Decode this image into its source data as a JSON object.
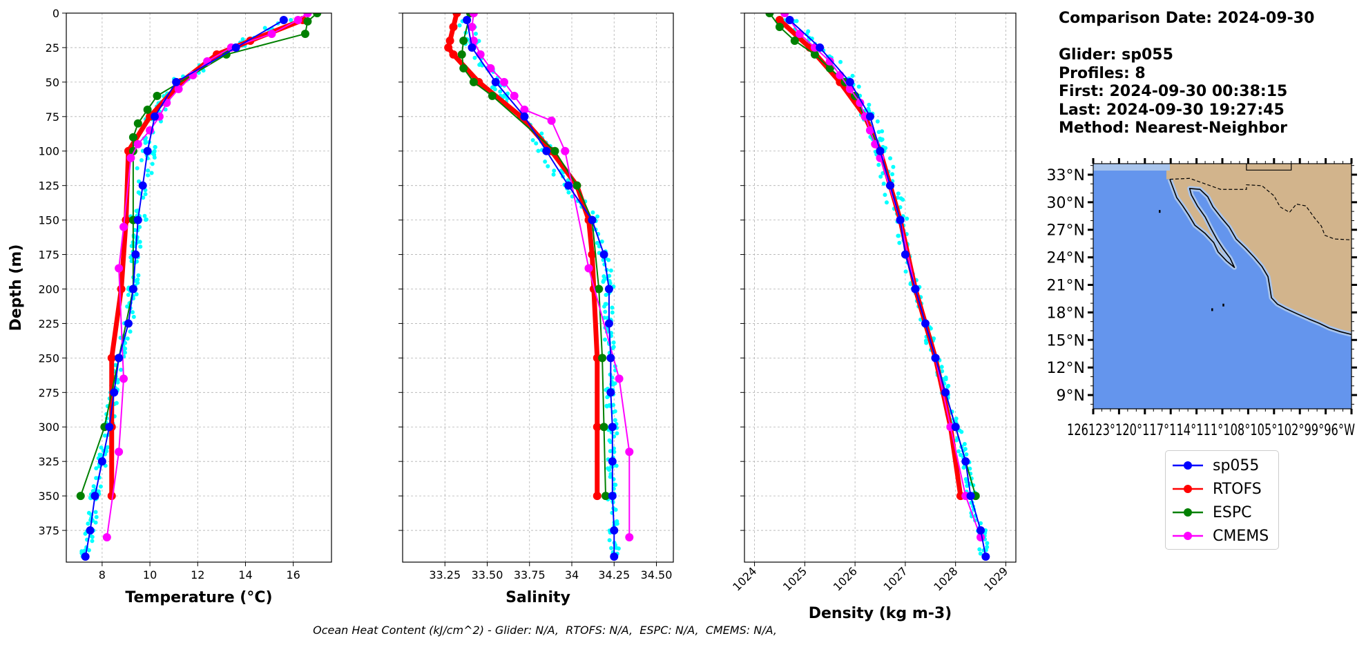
{
  "info": {
    "comparison_date": "Comparison Date: 2024-09-30",
    "glider": "Glider: sp055",
    "profiles": "Profiles: 8",
    "first": "First: 2024-09-30 00:38:15",
    "last": "Last: 2024-09-30 19:27:45",
    "method": "Method: Nearest-Neighbor"
  },
  "footer": "Ocean Heat Content (kJ/cm^2) - Glider: N/A,  RTOFS: N/A,  ESPC: N/A,  CMEMS: N/A,",
  "colors": {
    "sp055": "#0000ff",
    "RTOFS": "#ff0000",
    "ESPC": "#008000",
    "CMEMS": "#ff00ff",
    "glider_points": "#00ffff",
    "ocean": "#6495ed",
    "land": "#d2b48c",
    "shelf": "#a8c4ec"
  },
  "legend": [
    {
      "label": "sp055",
      "color": "#0000ff"
    },
    {
      "label": "RTOFS",
      "color": "#ff0000"
    },
    {
      "label": "ESPC",
      "color": "#008000"
    },
    {
      "label": "CMEMS",
      "color": "#ff00ff"
    }
  ],
  "chart_data": [
    {
      "type": "line",
      "xlabel": "Temperature (°C)",
      "ylabel": "Depth (m)",
      "xlim": [
        6.5,
        17.6
      ],
      "ylim": [
        0,
        398
      ],
      "y_inverted": true,
      "xticks": [
        8,
        10,
        12,
        14,
        16
      ],
      "yticks": [
        0,
        25,
        50,
        75,
        100,
        125,
        150,
        175,
        200,
        225,
        250,
        275,
        300,
        325,
        350,
        375
      ],
      "grid": true,
      "series": [
        {
          "name": "sp055",
          "depth": [
            5,
            25,
            50,
            75,
            100,
            125,
            150,
            175,
            200,
            225,
            250,
            275,
            300,
            325,
            350,
            375,
            394
          ],
          "values": [
            15.6,
            13.6,
            11.1,
            10.2,
            9.9,
            9.7,
            9.5,
            9.4,
            9.3,
            9.1,
            8.7,
            8.5,
            8.3,
            8.0,
            7.7,
            7.5,
            7.3
          ]
        },
        {
          "name": "RTOFS",
          "depth": [
            5,
            20,
            30,
            50,
            75,
            100,
            150,
            200,
            250,
            300,
            350
          ],
          "values": [
            16.4,
            14.2,
            12.8,
            11.3,
            10.0,
            9.1,
            9.0,
            8.8,
            8.4,
            8.4,
            8.4
          ]
        },
        {
          "name": "ESPC",
          "depth": [
            0,
            6,
            15,
            30,
            60,
            70,
            80,
            90,
            100,
            150,
            200,
            250,
            300,
            350
          ],
          "values": [
            17.0,
            16.6,
            16.5,
            13.2,
            10.3,
            9.9,
            9.5,
            9.3,
            9.3,
            9.3,
            9.3,
            8.7,
            8.1,
            7.1
          ]
        },
        {
          "name": "CMEMS",
          "depth": [
            0,
            5,
            15,
            25,
            35,
            45,
            55,
            65,
            75,
            85,
            95,
            105,
            155,
            185,
            265,
            318,
            380
          ],
          "values": [
            16.6,
            16.2,
            15.1,
            13.4,
            12.4,
            11.8,
            11.2,
            10.7,
            10.4,
            10.0,
            9.5,
            9.2,
            8.9,
            8.7,
            8.9,
            8.7,
            8.2
          ]
        }
      ]
    },
    {
      "type": "line",
      "xlabel": "Salinity",
      "xlim": [
        33.0,
        34.6
      ],
      "ylim": [
        0,
        398
      ],
      "y_inverted": true,
      "xticks": [
        33.25,
        33.5,
        33.75,
        34.0,
        34.25,
        34.5
      ],
      "grid": true,
      "series": [
        {
          "name": "sp055",
          "depth": [
            5,
            25,
            50,
            75,
            100,
            125,
            150,
            175,
            200,
            225,
            250,
            275,
            300,
            325,
            350,
            375,
            394
          ],
          "values": [
            33.38,
            33.41,
            33.55,
            33.72,
            33.85,
            33.98,
            34.12,
            34.19,
            34.22,
            34.22,
            34.23,
            34.23,
            34.24,
            34.24,
            34.24,
            34.25,
            34.25
          ]
        },
        {
          "name": "RTOFS",
          "depth": [
            0,
            10,
            20,
            25,
            30,
            50,
            75,
            100,
            125,
            150,
            175,
            200,
            250,
            300,
            350
          ],
          "values": [
            33.32,
            33.3,
            33.28,
            33.27,
            33.3,
            33.45,
            33.7,
            33.88,
            34.03,
            34.1,
            34.12,
            34.13,
            34.15,
            34.15,
            34.15
          ]
        },
        {
          "name": "ESPC",
          "depth": [
            0,
            20,
            30,
            40,
            50,
            60,
            100,
            125,
            150,
            200,
            250,
            300,
            350
          ],
          "values": [
            33.4,
            33.36,
            33.35,
            33.36,
            33.42,
            33.53,
            33.9,
            34.03,
            34.12,
            34.16,
            34.18,
            34.19,
            34.2
          ]
        },
        {
          "name": "CMEMS",
          "depth": [
            0,
            10,
            20,
            30,
            40,
            50,
            60,
            70,
            78,
            100,
            185,
            265,
            318,
            380
          ],
          "values": [
            33.42,
            33.41,
            33.42,
            33.46,
            33.52,
            33.6,
            33.66,
            33.72,
            33.88,
            33.96,
            34.1,
            34.28,
            34.34,
            34.34
          ]
        }
      ]
    },
    {
      "type": "line",
      "xlabel": "Density (kg m-3)",
      "xlim": [
        1023.8,
        1029.2
      ],
      "ylim": [
        0,
        398
      ],
      "y_inverted": true,
      "xticks": [
        1024,
        1025,
        1026,
        1027,
        1028,
        1029
      ],
      "tick_rotation": 45,
      "grid": true,
      "series": [
        {
          "name": "sp055",
          "depth": [
            5,
            25,
            50,
            75,
            100,
            125,
            150,
            175,
            200,
            225,
            250,
            275,
            300,
            325,
            350,
            375,
            394
          ],
          "values": [
            1024.7,
            1025.3,
            1025.9,
            1026.3,
            1026.5,
            1026.7,
            1026.9,
            1027.0,
            1027.2,
            1027.4,
            1027.6,
            1027.8,
            1028.0,
            1028.2,
            1028.3,
            1028.5,
            1028.6
          ]
        },
        {
          "name": "RTOFS",
          "depth": [
            5,
            25,
            50,
            75,
            100,
            150,
            200,
            250,
            300,
            350
          ],
          "values": [
            1024.5,
            1025.1,
            1025.7,
            1026.2,
            1026.5,
            1026.9,
            1027.2,
            1027.6,
            1027.9,
            1028.1
          ]
        },
        {
          "name": "ESPC",
          "depth": [
            0,
            10,
            20,
            30,
            40,
            50,
            60,
            100,
            125,
            150,
            200,
            250,
            300,
            350
          ],
          "values": [
            1024.3,
            1024.5,
            1024.8,
            1025.2,
            1025.5,
            1025.8,
            1026.0,
            1026.5,
            1026.7,
            1026.9,
            1027.2,
            1027.6,
            1028.0,
            1028.4
          ]
        },
        {
          "name": "CMEMS",
          "depth": [
            0,
            5,
            15,
            25,
            35,
            45,
            55,
            65,
            75,
            85,
            95,
            105,
            150,
            200,
            250,
            300,
            350,
            380
          ],
          "values": [
            1024.6,
            1024.7,
            1024.9,
            1025.2,
            1025.5,
            1025.7,
            1025.9,
            1026.1,
            1026.2,
            1026.3,
            1026.4,
            1026.5,
            1026.9,
            1027.2,
            1027.6,
            1027.9,
            1028.2,
            1028.5
          ]
        }
      ]
    },
    {
      "type": "map",
      "lat_ticks": [
        "9°N",
        "12°N",
        "15°N",
        "18°N",
        "21°N",
        "24°N",
        "27°N",
        "30°N",
        "33°N"
      ],
      "lat_values": [
        9,
        12,
        15,
        18,
        21,
        24,
        27,
        30,
        33
      ],
      "lon_ticks": [
        "126°W",
        "123°W",
        "120°W",
        "117°W",
        "114°W",
        "111°W",
        "108°W",
        "105°W",
        "102°W",
        "99°W",
        "96°W"
      ],
      "lon_values": [
        -126,
        -123,
        -120,
        -117,
        -114,
        -111,
        -108,
        -105,
        -102,
        -99,
        -96
      ],
      "lon_tick_render": "126123°120°117°114°111°108°105°102°99°96°W",
      "extent": {
        "lon": [
          -126,
          -96
        ],
        "lat": [
          7.5,
          34.2
        ]
      },
      "coastline": [
        [
          -117.1,
          32.5
        ],
        [
          -116.7,
          31.5
        ],
        [
          -116.3,
          30.5
        ],
        [
          -115.6,
          29.6
        ],
        [
          -114.9,
          28.6
        ],
        [
          -114.2,
          27.5
        ],
        [
          -113.0,
          26.6
        ],
        [
          -112.0,
          25.6
        ],
        [
          -111.5,
          24.6
        ],
        [
          -110.5,
          23.6
        ],
        [
          -109.6,
          22.9
        ],
        [
          -110.1,
          23.9
        ],
        [
          -110.9,
          24.9
        ],
        [
          -111.6,
          25.9
        ],
        [
          -112.3,
          27.1
        ],
        [
          -113.0,
          28.4
        ],
        [
          -113.9,
          29.6
        ],
        [
          -114.6,
          30.8
        ],
        [
          -114.8,
          31.5
        ],
        [
          -113.6,
          31.4
        ],
        [
          -112.7,
          30.6
        ],
        [
          -112.1,
          29.5
        ],
        [
          -111.1,
          28.3
        ],
        [
          -110.2,
          27.3
        ],
        [
          -109.4,
          26.0
        ],
        [
          -108.3,
          25.0
        ],
        [
          -107.3,
          24.0
        ],
        [
          -106.4,
          23.0
        ],
        [
          -105.7,
          21.9
        ],
        [
          -105.5,
          20.8
        ],
        [
          -105.3,
          19.6
        ],
        [
          -104.6,
          18.9
        ],
        [
          -103.6,
          18.4
        ],
        [
          -102.2,
          17.8
        ],
        [
          -101.0,
          17.3
        ],
        [
          -99.7,
          16.8
        ],
        [
          -98.6,
          16.3
        ],
        [
          -97.3,
          15.9
        ],
        [
          -96.0,
          15.6
        ]
      ],
      "border": [
        [
          -117.1,
          32.5
        ],
        [
          -114.8,
          32.6
        ],
        [
          -111.2,
          31.4
        ],
        [
          -108.2,
          31.4
        ],
        [
          -108.2,
          31.9
        ],
        [
          -106.4,
          31.8
        ],
        [
          -105.0,
          30.7
        ],
        [
          -104.3,
          29.5
        ],
        [
          -103.2,
          28.9
        ],
        [
          -102.4,
          29.8
        ],
        [
          -101.3,
          29.6
        ],
        [
          -100.3,
          28.3
        ],
        [
          -99.5,
          27.4
        ],
        [
          -99.1,
          26.4
        ],
        [
          -98.0,
          26.0
        ],
        [
          -96.0,
          25.9
        ]
      ],
      "states": [
        [
          -108.2,
          34.2
        ],
        [
          -108.2,
          33.5
        ],
        [
          -103.0,
          33.5
        ],
        [
          -103.0,
          34.2
        ]
      ]
    }
  ]
}
